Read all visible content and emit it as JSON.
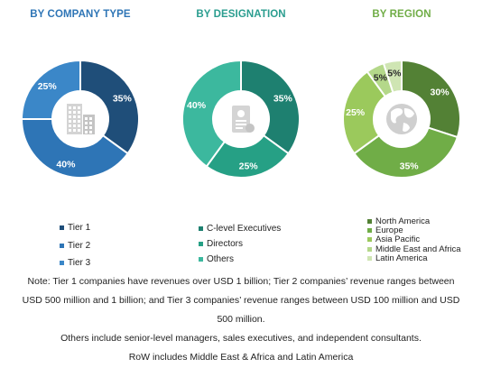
{
  "charts": [
    {
      "id": "company",
      "title": "BY COMPANY TYPE",
      "title_color": "#2e75b6",
      "icon": "building-icon",
      "segments": [
        {
          "label": "Tier 1",
          "value": 35,
          "color": "#1f4e79"
        },
        {
          "label": "Tier 2",
          "value": 40,
          "color": "#2e75b6"
        },
        {
          "label": "Tier 3",
          "value": 25,
          "color": "#3b87c8"
        }
      ]
    },
    {
      "id": "designation",
      "title": "BY DESIGNATION",
      "title_color": "#2a9d8f",
      "icon": "id-card-icon",
      "segments": [
        {
          "label": "C-level Executives",
          "value": 35,
          "color": "#1e8070"
        },
        {
          "label": "Directors",
          "value": 25,
          "color": "#26a085"
        },
        {
          "label": "Others",
          "value": 40,
          "color": "#3cb89e"
        }
      ]
    },
    {
      "id": "region",
      "title": "BY REGION",
      "title_color": "#70ad47",
      "icon": "globe-icon",
      "segments": [
        {
          "label": "North America",
          "value": 30,
          "color": "#538135"
        },
        {
          "label": "Europe",
          "value": 35,
          "color": "#70ad47"
        },
        {
          "label": "Asia Pacific",
          "value": 25,
          "color": "#9bc95c"
        },
        {
          "label": "Middle East and Africa",
          "value": 5,
          "color": "#b4d88a"
        },
        {
          "label": "Latin America",
          "value": 5,
          "color": "#cfe5b3"
        }
      ]
    }
  ],
  "chart_data": [
    {
      "type": "pie",
      "title": "BY COMPANY TYPE",
      "categories": [
        "Tier 1",
        "Tier 2",
        "Tier 3"
      ],
      "values": [
        35,
        40,
        25
      ],
      "unit": "%"
    },
    {
      "type": "pie",
      "title": "BY DESIGNATION",
      "categories": [
        "C-level Executives",
        "Directors",
        "Others"
      ],
      "values": [
        35,
        25,
        40
      ],
      "unit": "%"
    },
    {
      "type": "pie",
      "title": "BY REGION",
      "categories": [
        "North America",
        "Europe",
        "Asia Pacific",
        "Middle East and Africa",
        "Latin America"
      ],
      "values": [
        30,
        35,
        25,
        5,
        5
      ],
      "unit": "%"
    }
  ],
  "notes": {
    "line1": "Note: Tier 1 companies have revenues over USD 1 billion; Tier 2 companies’ revenue ranges between USD 500 million and 1 billion; and Tier 3 companies’ revenue ranges between USD 100 million and USD 500 million.",
    "line2": "Others include senior-level managers, sales executives, and independent consultants.",
    "line3": "RoW includes Middle East & Africa and Latin America"
  }
}
